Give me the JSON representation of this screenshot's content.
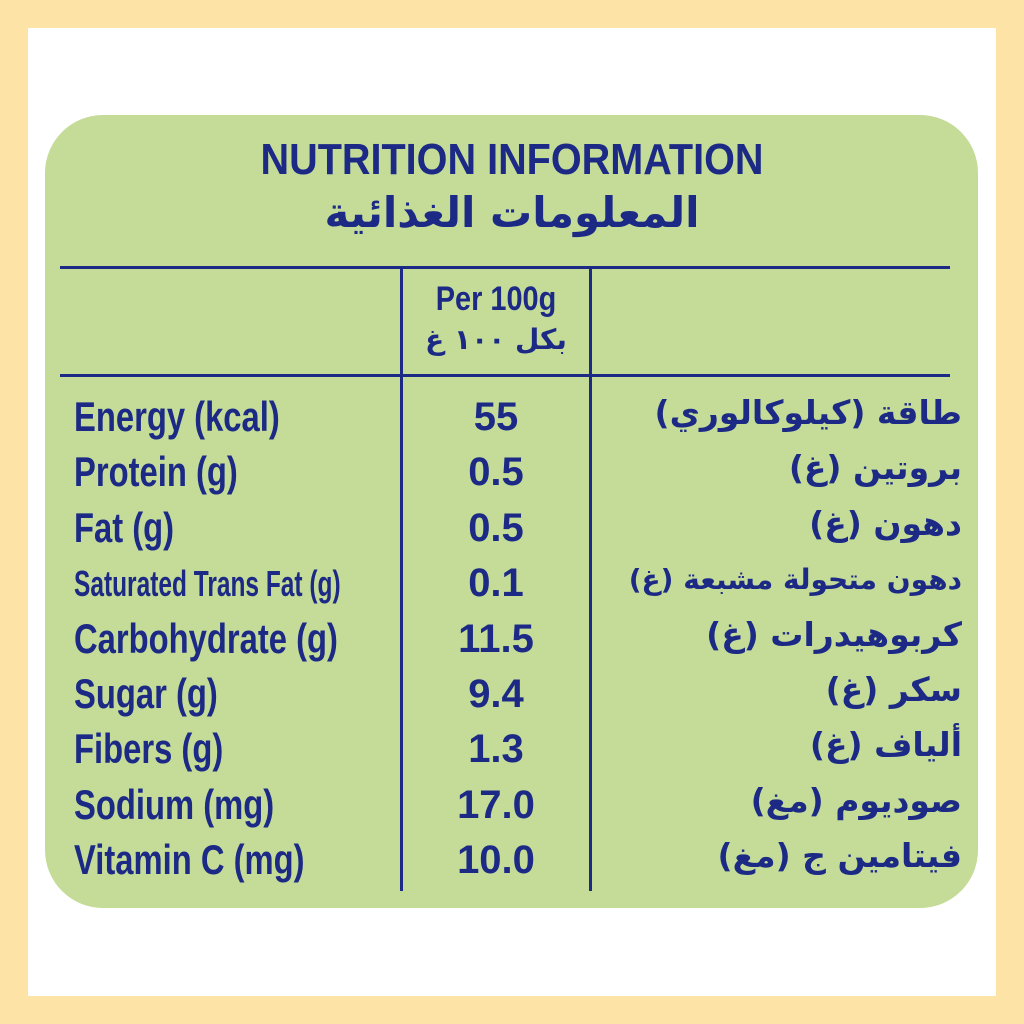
{
  "title": "NUTRITION INFORMATION",
  "title_ar": "المعلومات الغذائية",
  "header": {
    "per": "Per 100g",
    "per_ar": "بكل ١٠٠ غ"
  },
  "rows": [
    {
      "label": "Energy (kcal)",
      "value": "55",
      "label_ar": "طاقة (كيلوكالوري)"
    },
    {
      "label": "Protein (g)",
      "value": "0.5",
      "label_ar": "بروتين (غ)"
    },
    {
      "label": "Fat (g)",
      "value": "0.5",
      "label_ar": "دهون (غ)"
    },
    {
      "label": "Saturated Trans Fat (g)",
      "value": "0.1",
      "label_ar": "دهون متحولة مشبعة (غ)"
    },
    {
      "label": "Carbohydrate (g)",
      "value": "11.5",
      "label_ar": "كربوهيدرات (غ)"
    },
    {
      "label": "Sugar (g)",
      "value": "9.4",
      "label_ar": "سكر (غ)"
    },
    {
      "label": "Fibers (g)",
      "value": "1.3",
      "label_ar": "ألياف (غ)"
    },
    {
      "label": "Sodium (mg)",
      "value": "17.0",
      "label_ar": "صوديوم (مغ)"
    },
    {
      "label": "Vitamin C (mg)",
      "value": "10.0",
      "label_ar": "فيتامين ج (مغ)"
    }
  ]
}
